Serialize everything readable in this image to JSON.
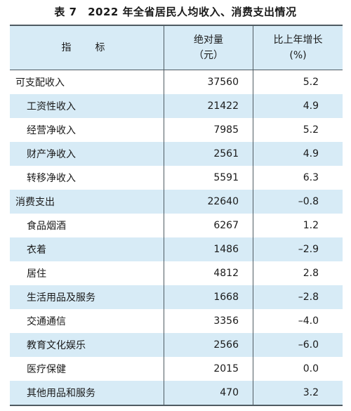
{
  "title": "表 7　2022 年全省居民人均收入、消费支出情况",
  "header": {
    "col1": "指　标",
    "col2_line1": "绝对量",
    "col2_line2": "（元）",
    "col3_line1": "比上年增长",
    "col3_line2": "(%)"
  },
  "rows": [
    {
      "label": "可支配收入",
      "value": "37560",
      "growth": "5.2"
    },
    {
      "label": "工资性收入",
      "value": "21422",
      "growth": "4.9"
    },
    {
      "label": "经营净收入",
      "value": "7985",
      "growth": "5.2"
    },
    {
      "label": "财产净收入",
      "value": "2561",
      "growth": "4.9"
    },
    {
      "label": "转移净收入",
      "value": "5591",
      "growth": "6.3"
    },
    {
      "label": "消费支出",
      "value": "22640",
      "growth": "–0.8"
    },
    {
      "label": "食品烟酒",
      "value": "6267",
      "growth": "1.2"
    },
    {
      "label": "衣着",
      "value": "1486",
      "growth": "–2.9"
    },
    {
      "label": "居住",
      "value": "4812",
      "growth": "2.8"
    },
    {
      "label": "生活用品及服务",
      "value": "1668",
      "growth": "–2.8"
    },
    {
      "label": "交通通信",
      "value": "3356",
      "growth": "–4.0"
    },
    {
      "label": "教育文化娱乐",
      "value": "2566",
      "growth": "–6.0"
    },
    {
      "label": "医疗保健",
      "value": "2015",
      "growth": "0.0"
    },
    {
      "label": "其他用品和服务",
      "value": "470",
      "growth": "3.2"
    }
  ]
}
